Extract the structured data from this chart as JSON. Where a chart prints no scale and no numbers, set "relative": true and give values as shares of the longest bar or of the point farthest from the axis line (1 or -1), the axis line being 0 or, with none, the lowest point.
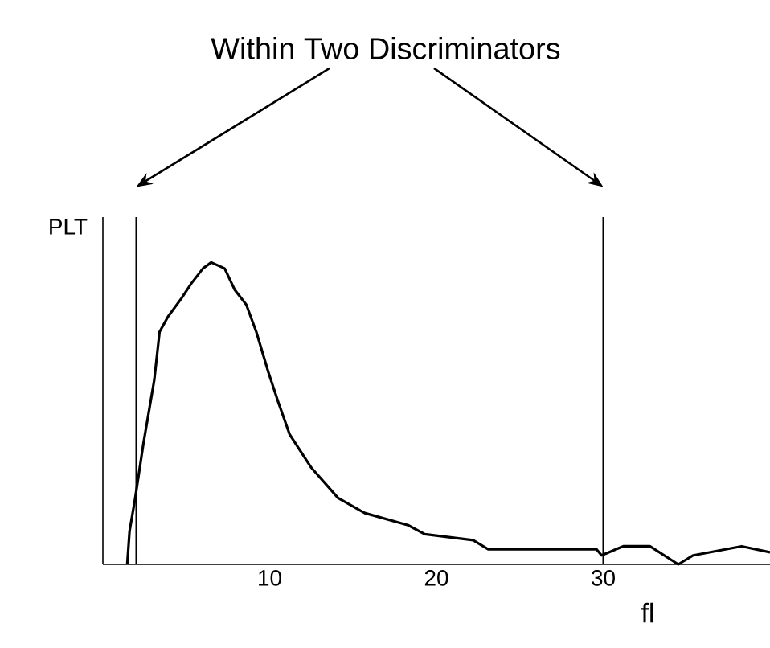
{
  "chart_data": {
    "type": "line",
    "title": "Within Two Discriminators",
    "xlabel": "fl",
    "ylabel": "PLT",
    "relative": true,
    "tick_labels": "x",
    "color": "#000000",
    "x": [
      1.46,
      1.6,
      1.94,
      2.43,
      3.08,
      3.4,
      3.9,
      4.7,
      5.3,
      6.0,
      6.5,
      7.3,
      7.9,
      8.6,
      9.2,
      9.9,
      10.5,
      11.2,
      12.5,
      14.1,
      15.7,
      18.3,
      19.3,
      22.2,
      23.1,
      29.6,
      29.9,
      31.2,
      32.8,
      34.5,
      35.4,
      38.3,
      40
    ],
    "values": [
      0,
      0.11,
      0.22,
      0.4,
      0.61,
      0.77,
      0.82,
      0.88,
      0.93,
      0.98,
      1.0,
      0.98,
      0.91,
      0.86,
      0.77,
      0.64,
      0.54,
      0.43,
      0.32,
      0.22,
      0.17,
      0.13,
      0.1,
      0.08,
      0.05,
      0.05,
      0.03,
      0.06,
      0.06,
      0.0,
      0.03,
      0.06,
      0.04
    ],
    "xlim": [
      0,
      40
    ],
    "xticks": [
      10,
      20,
      30
    ],
    "ref_lines": [
      {
        "axis": "x",
        "value": 2,
        "color": "#000000"
      },
      {
        "axis": "x",
        "value": 30,
        "color": "#000000"
      }
    ]
  }
}
